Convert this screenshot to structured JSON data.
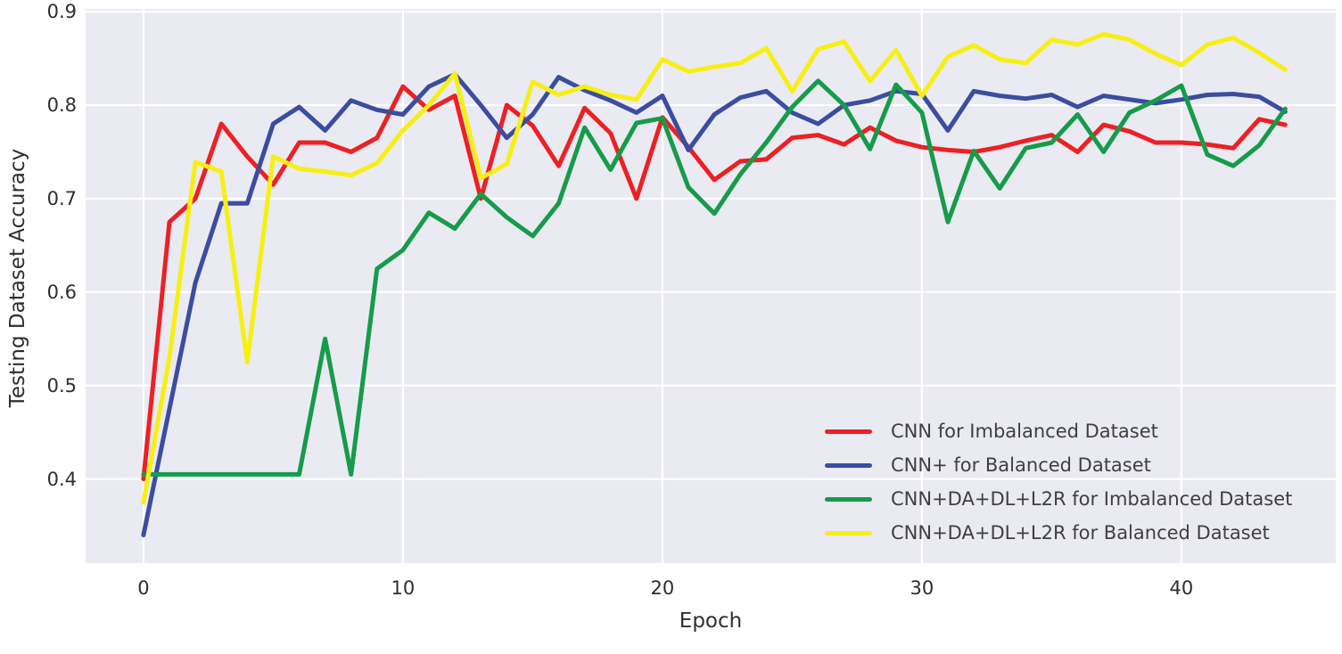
{
  "chart_data": {
    "type": "line",
    "title": "",
    "xlabel": "Epoch",
    "ylabel": "Testing Dataset Accuracy",
    "xlim": [
      -2.23,
      45.95
    ],
    "ylim": [
      0.31,
      0.903
    ],
    "grid": true,
    "plot_bg_color": "#eaeaf2",
    "grid_color": "#ffffff",
    "tick_text_color": "#2e2e2e",
    "legend_text_color": "#3f3f3f",
    "legend_position": "lower right",
    "x_ticks": [
      0,
      10,
      20,
      30,
      40
    ],
    "x_tick_labels": [
      "0",
      "10",
      "20",
      "30",
      "40"
    ],
    "y_ticks": [
      0.4,
      0.5,
      0.6,
      0.7,
      0.8,
      0.9
    ],
    "y_tick_labels": [
      "0.4",
      "0.5",
      "0.6",
      "0.7",
      "0.8",
      "0.9"
    ],
    "x": [
      0,
      1,
      2,
      3,
      4,
      5,
      6,
      7,
      8,
      9,
      10,
      11,
      12,
      13,
      14,
      15,
      16,
      17,
      18,
      19,
      20,
      21,
      22,
      23,
      24,
      25,
      26,
      27,
      28,
      29,
      30,
      31,
      32,
      33,
      34,
      35,
      36,
      37,
      38,
      39,
      40,
      41,
      42,
      43,
      44
    ],
    "series": [
      {
        "name": "CNN for Imbalanced Dataset",
        "color": "#ed2024",
        "values": [
          0.4,
          0.675,
          0.7,
          0.78,
          0.745,
          0.715,
          0.76,
          0.76,
          0.75,
          0.765,
          0.82,
          0.795,
          0.81,
          0.7,
          0.8,
          0.778,
          0.735,
          0.797,
          0.77,
          0.7,
          0.787,
          0.755,
          0.72,
          0.74,
          0.742,
          0.765,
          0.768,
          0.758,
          0.776,
          0.762,
          0.755,
          0.752,
          0.75,
          0.755,
          0.762,
          0.768,
          0.75,
          0.779,
          0.772,
          0.76,
          0.76,
          0.758,
          0.754,
          0.785,
          0.779
        ]
      },
      {
        "name": "CNN+ for Balanced Dataset",
        "color": "#3b4da0",
        "values": [
          0.34,
          0.475,
          0.61,
          0.695,
          0.695,
          0.78,
          0.798,
          0.773,
          0.805,
          0.795,
          0.79,
          0.82,
          0.833,
          0.8,
          0.765,
          0.79,
          0.83,
          0.816,
          0.805,
          0.792,
          0.81,
          0.752,
          0.79,
          0.808,
          0.815,
          0.792,
          0.78,
          0.8,
          0.805,
          0.815,
          0.812,
          0.773,
          0.815,
          0.81,
          0.807,
          0.811,
          0.798,
          0.81,
          0.806,
          0.802,
          0.806,
          0.811,
          0.812,
          0.809,
          0.793
        ]
      },
      {
        "name": "CNN+DA+DL+L2R for Imbalanced Dataset",
        "color": "#169b4a",
        "values": [
          0.405,
          0.405,
          0.405,
          0.405,
          0.405,
          0.405,
          0.405,
          0.55,
          0.405,
          0.625,
          0.645,
          0.685,
          0.668,
          0.705,
          0.68,
          0.66,
          0.695,
          0.776,
          0.731,
          0.781,
          0.786,
          0.712,
          0.684,
          0.726,
          0.76,
          0.798,
          0.826,
          0.8,
          0.753,
          0.822,
          0.792,
          0.675,
          0.751,
          0.711,
          0.754,
          0.76,
          0.79,
          0.75,
          0.792,
          0.805,
          0.821,
          0.747,
          0.735,
          0.757,
          0.796
        ]
      },
      {
        "name": "CNN+DA+DL+L2R for Balanced Dataset",
        "color": "#f7ef12",
        "values": [
          0.375,
          0.53,
          0.739,
          0.729,
          0.525,
          0.745,
          0.732,
          0.729,
          0.725,
          0.738,
          0.773,
          0.8,
          0.834,
          0.722,
          0.737,
          0.825,
          0.811,
          0.82,
          0.811,
          0.806,
          0.849,
          0.836,
          0.841,
          0.845,
          0.861,
          0.815,
          0.86,
          0.868,
          0.826,
          0.859,
          0.81,
          0.852,
          0.864,
          0.849,
          0.845,
          0.87,
          0.865,
          0.876,
          0.87,
          0.855,
          0.843,
          0.865,
          0.872,
          0.856,
          0.838
        ]
      }
    ]
  }
}
